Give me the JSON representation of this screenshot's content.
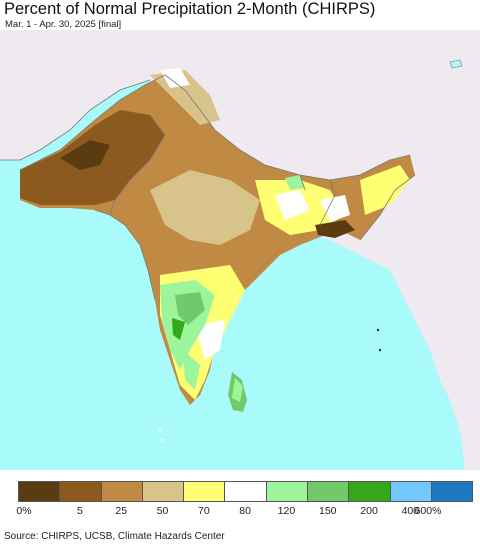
{
  "header": {
    "title": "Percent of Normal Precipitation 2-Month (CHIRPS)",
    "subtitle": "Mar. 1 - Apr. 30, 2025 [final]"
  },
  "legend": {
    "colors": [
      "#5a3c10",
      "#8c5a1e",
      "#c08a44",
      "#d8c38a",
      "#ffff73",
      "#ffffff",
      "#9cf59a",
      "#72c96a",
      "#34a818",
      "#73c7ff",
      "#1e78c0"
    ],
    "ticks": [
      "0%",
      "5",
      "25",
      "50",
      "70",
      "80",
      "120",
      "150",
      "200",
      "400",
      "600%"
    ]
  },
  "palette": {
    "ocean": "#a9fbfb",
    "land_outside": "#eeeaf0",
    "border": "#777777"
  },
  "footer": {
    "source": "Source: CHIRPS, UCSB, Climate Hazards Center"
  }
}
